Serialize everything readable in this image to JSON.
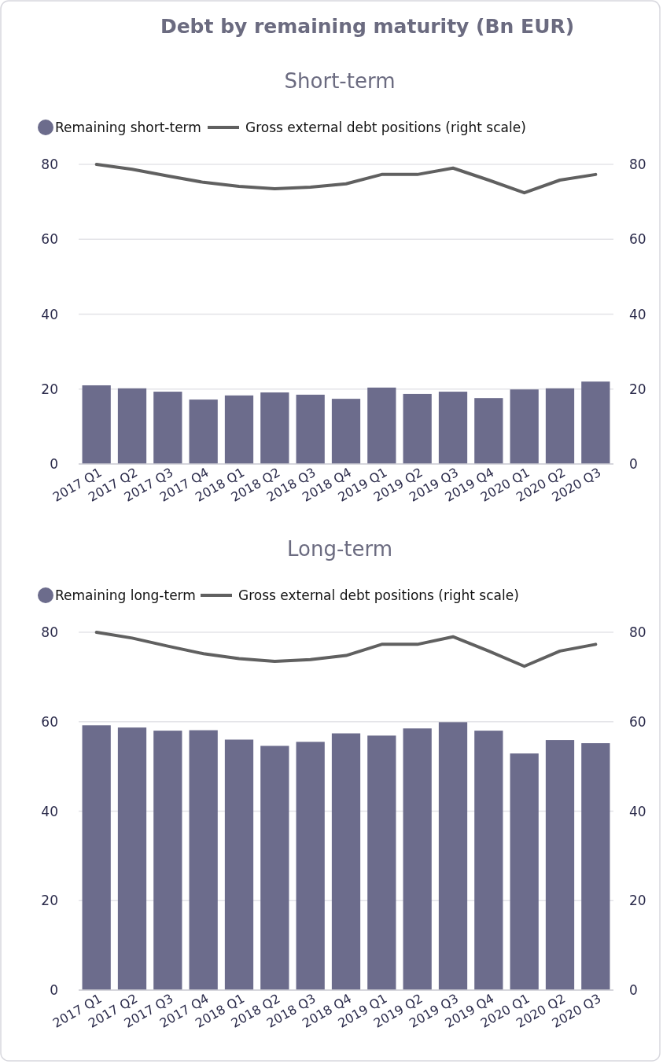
{
  "chart_data": [
    {
      "type": "bar",
      "title": "Debt by remaining maturity (Bn EUR)",
      "subtitle": "Short-term",
      "categories": [
        "2017 Q1",
        "2017 Q2",
        "2017 Q3",
        "2017 Q4",
        "2018 Q1",
        "2018 Q2",
        "2018 Q3",
        "2018 Q4",
        "2019 Q1",
        "2019 Q2",
        "2019 Q3",
        "2019 Q4",
        "2020 Q1",
        "2020 Q2",
        "2020 Q3"
      ],
      "series": [
        {
          "name": "Remaining short-term",
          "color": "#6c6c8c",
          "values": [
            21.0,
            20.2,
            19.3,
            17.2,
            18.3,
            19.1,
            18.5,
            17.4,
            20.4,
            18.7,
            19.3,
            17.6,
            19.9,
            20.2,
            22.0
          ]
        },
        {
          "name": "Gross external debt positions (right scale)",
          "type": "line",
          "axis": "y2",
          "color": "#606060",
          "values": [
            80.0,
            78.7,
            76.9,
            75.2,
            74.1,
            73.5,
            73.9,
            74.8,
            77.3,
            77.3,
            79.0,
            75.8,
            72.4,
            75.8,
            77.3
          ]
        }
      ],
      "ylim": [
        0,
        80
      ],
      "yticks": [
        0,
        20,
        40,
        60,
        80
      ],
      "y2lim": [
        0,
        80
      ],
      "y2ticks": [
        0,
        20,
        40,
        60,
        80
      ],
      "grid": "y",
      "legend": "top",
      "marker": "none",
      "line_style": "solid"
    },
    {
      "type": "bar",
      "title": "Long-term",
      "categories": [
        "2017 Q1",
        "2017 Q2",
        "2017 Q3",
        "2017 Q4",
        "2018 Q1",
        "2018 Q2",
        "2018 Q3",
        "2018 Q4",
        "2019 Q1",
        "2019 Q2",
        "2019 Q3",
        "2019 Q4",
        "2020 Q1",
        "2020 Q2",
        "2020 Q3"
      ],
      "series": [
        {
          "name": "Remaining long-term",
          "color": "#6c6c8c",
          "values": [
            59.2,
            58.7,
            58.0,
            58.1,
            56.0,
            54.6,
            55.5,
            57.4,
            56.9,
            58.5,
            59.9,
            58.0,
            52.9,
            55.9,
            55.2
          ]
        },
        {
          "name": "Gross external debt positions (right scale)",
          "type": "line",
          "axis": "y2",
          "color": "#606060",
          "values": [
            80.0,
            78.7,
            76.9,
            75.2,
            74.1,
            73.5,
            73.9,
            74.8,
            77.3,
            77.3,
            79.0,
            75.8,
            72.4,
            75.8,
            77.3
          ]
        }
      ],
      "ylim": [
        0,
        80
      ],
      "yticks": [
        0,
        20,
        40,
        60,
        80
      ],
      "y2lim": [
        0,
        80
      ],
      "y2ticks": [
        0,
        20,
        40,
        60,
        80
      ],
      "grid": "y",
      "legend": "top",
      "marker": "none",
      "line_style": "solid"
    }
  ]
}
